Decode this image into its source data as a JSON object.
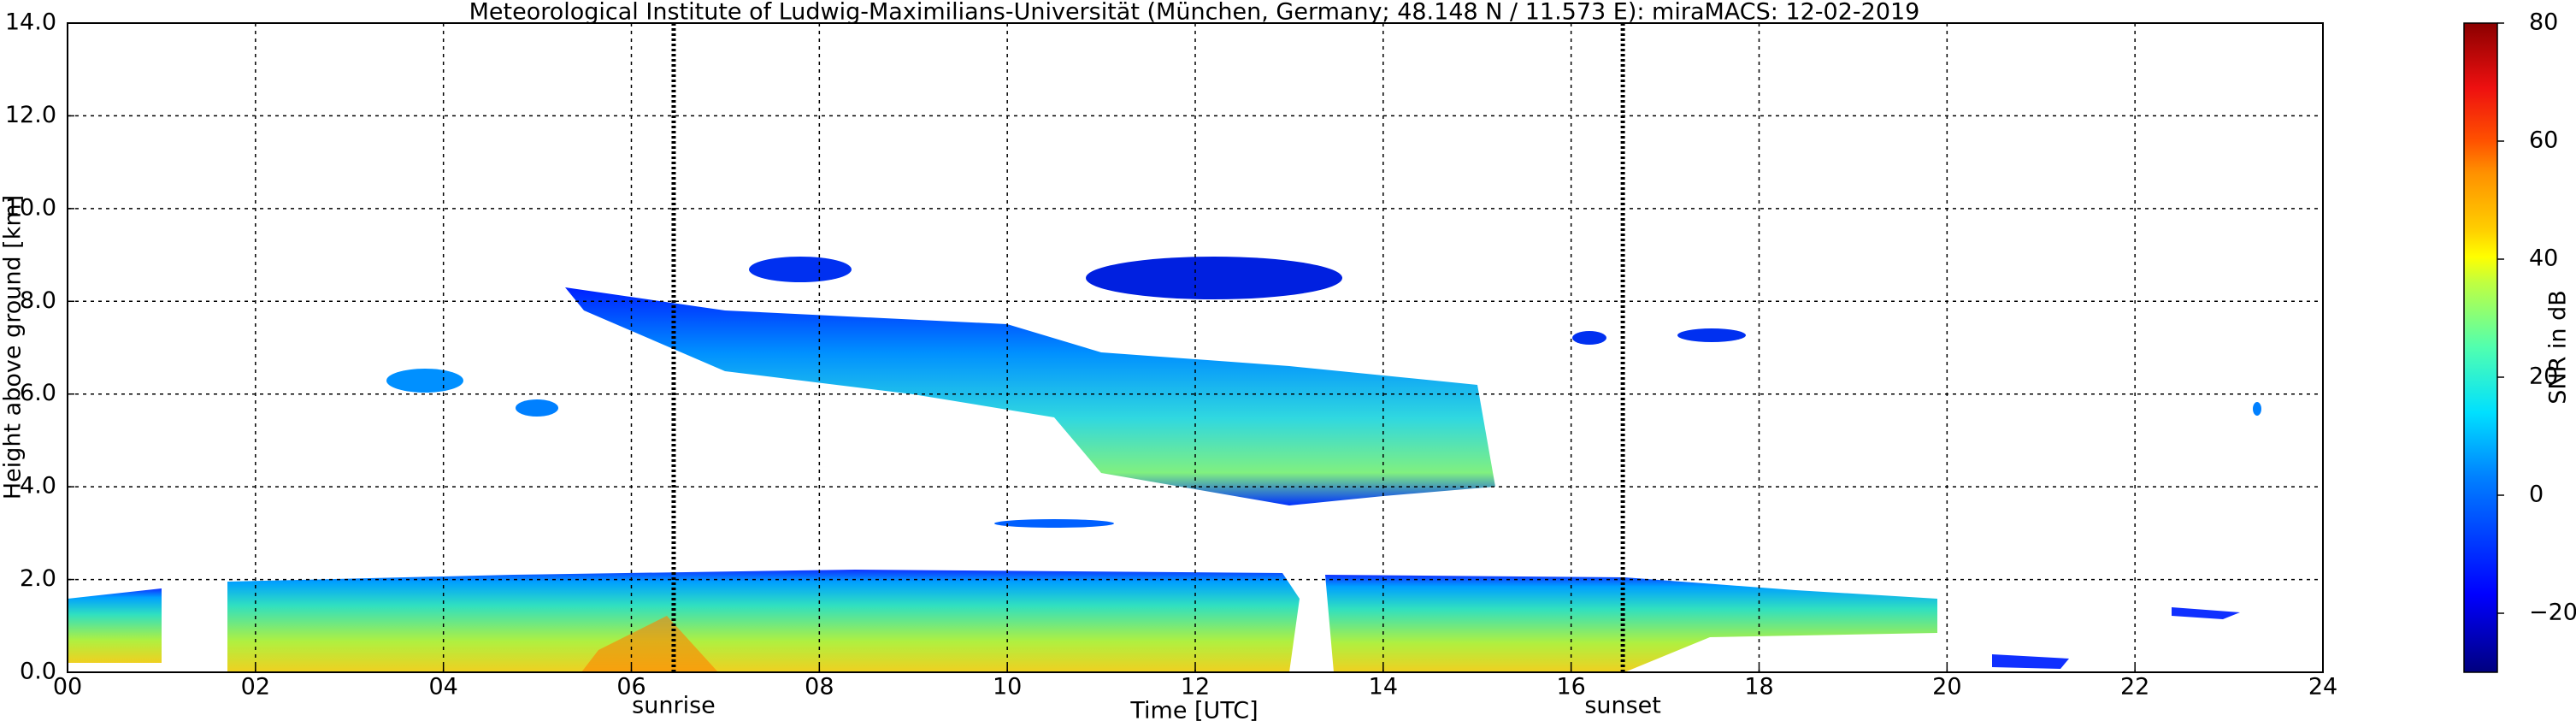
{
  "chart_data": {
    "type": "heatmap",
    "title": "Meteorological Institute of Ludwig-Maximilians-Universität (München, Germany; 48.148 N / 11.573 E):     miraMACS: 12-02-2019",
    "x_label": "Time [UTC]",
    "y_label": "Height above ground [km]",
    "xlim": [
      0,
      24
    ],
    "xticks": [
      {
        "value": 0,
        "label": "00"
      },
      {
        "value": 2,
        "label": "02"
      },
      {
        "value": 4,
        "label": "04"
      },
      {
        "value": 6,
        "label": "06"
      },
      {
        "value": 8,
        "label": "08"
      },
      {
        "value": 10,
        "label": "10"
      },
      {
        "value": 12,
        "label": "12"
      },
      {
        "value": 14,
        "label": "14"
      },
      {
        "value": 16,
        "label": "16"
      },
      {
        "value": 18,
        "label": "18"
      },
      {
        "value": 20,
        "label": "20"
      },
      {
        "value": 22,
        "label": "22"
      },
      {
        "value": 24,
        "label": "24"
      }
    ],
    "ylim": [
      0,
      14
    ],
    "yticks": [
      {
        "value": 0,
        "label": "0.0"
      },
      {
        "value": 2,
        "label": "2.0"
      },
      {
        "value": 4,
        "label": "4.0"
      },
      {
        "value": 6,
        "label": "6.0"
      },
      {
        "value": 8,
        "label": "8.0"
      },
      {
        "value": 10,
        "label": "10.0"
      },
      {
        "value": 12,
        "label": "12.0"
      },
      {
        "value": 14,
        "label": "14.0"
      }
    ],
    "grid": true,
    "annotations": [
      {
        "text": "sunrise",
        "x": 6.45
      },
      {
        "text": "sunset",
        "x": 16.55
      }
    ],
    "colorbar": {
      "label": "SNR in dB",
      "lim": [
        -30,
        80
      ],
      "ticks": [
        {
          "value": -20,
          "label": "−20"
        },
        0,
        20,
        40,
        60,
        80
      ]
    }
  }
}
